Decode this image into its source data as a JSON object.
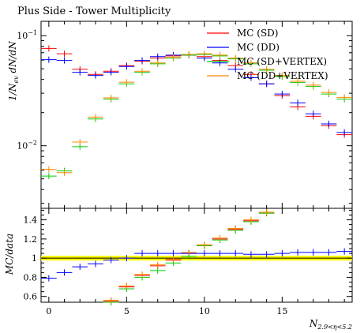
{
  "chart_data": [
    {
      "type": "line",
      "title": "Plus Side - Tower Multiplicity",
      "ylabel": "1/N_ev dN/dN",
      "xlabel": "",
      "yscale": "log",
      "xlim": [
        -0.5,
        19.5
      ],
      "ylim": [
        0.0027,
        0.135
      ],
      "grid": false,
      "legend_position": "top-right",
      "ytick_labels": [
        {
          "value": 0.01,
          "label": "10",
          "exp": "−2"
        },
        {
          "value": 0.1,
          "label": "10",
          "exp": "−1"
        }
      ],
      "x": [
        0,
        1,
        2,
        3,
        4,
        5,
        6,
        7,
        8,
        9,
        10,
        11,
        12,
        13,
        14,
        15,
        16,
        17,
        18,
        19
      ],
      "series": [
        {
          "name": "MC (SD)",
          "color": "#ff0000",
          "values": [
            0.0765,
            0.0685,
            0.0495,
            0.0445,
            0.0475,
            0.0535,
            0.0585,
            0.0625,
            0.0655,
            0.0665,
            0.0645,
            0.0595,
            0.0535,
            0.0445,
            0.0365,
            0.0285,
            0.0225,
            0.0185,
            0.0152,
            0.0126
          ]
        },
        {
          "name": "MC (DD)",
          "color": "#0000ff",
          "values": [
            0.0605,
            0.0595,
            0.0465,
            0.0435,
            0.0465,
            0.0525,
            0.0595,
            0.0645,
            0.0665,
            0.0665,
            0.0625,
            0.0565,
            0.0495,
            0.0415,
            0.0365,
            0.0295,
            0.0245,
            0.0195,
            0.0158,
            0.0132
          ]
        },
        {
          "name": "MC (SD+VERTEX)",
          "color": "#00cc00",
          "values": [
            0.0053,
            0.0059,
            0.0098,
            0.0175,
            0.0265,
            0.0365,
            0.0465,
            0.0555,
            0.0625,
            0.0665,
            0.0675,
            0.0655,
            0.0615,
            0.0555,
            0.0485,
            0.0425,
            0.0375,
            0.0345,
            0.0295,
            0.0265
          ]
        },
        {
          "name": "MC (DD+VERTEX)",
          "color": "#ff8800",
          "values": [
            0.0061,
            0.0057,
            0.0108,
            0.0182,
            0.0272,
            0.0378,
            0.0475,
            0.0565,
            0.0635,
            0.0675,
            0.0685,
            0.0665,
            0.0625,
            0.0565,
            0.0495,
            0.0435,
            0.0385,
            0.0355,
            0.0305,
            0.0275
          ]
        }
      ]
    },
    {
      "type": "line",
      "title": "",
      "ylabel": "MC/data",
      "xlabel": "N_2.9<η<5.2",
      "xlim": [
        -0.5,
        19.5
      ],
      "ylim": [
        0.54,
        1.52
      ],
      "grid": false,
      "reference_line": 1.0,
      "reference_band": [
        0.975,
        1.025
      ],
      "xticks": [
        0,
        5,
        10,
        15
      ],
      "yticks": [
        0.6,
        0.8,
        1.0,
        1.2,
        1.4
      ],
      "ytick_labels": [
        "0.6",
        "0.8",
        "1",
        "1.2",
        "1.4"
      ],
      "x": [
        0,
        1,
        2,
        3,
        4,
        5,
        6,
        7,
        8,
        9,
        10,
        11,
        12,
        13,
        14,
        15,
        16,
        17,
        18,
        19
      ],
      "series": [
        {
          "name": "MC (SD)",
          "color": "#ff0000",
          "values": [
            null,
            null,
            null,
            null,
            0.55,
            0.7,
            0.82,
            0.92,
            0.98,
            1.05,
            1.13,
            1.2,
            1.3,
            1.39,
            1.47,
            null,
            null,
            null,
            null,
            null
          ]
        },
        {
          "name": "MC (DD)",
          "color": "#0000ff",
          "values": [
            0.79,
            0.85,
            0.91,
            0.94,
            0.98,
            1.0,
            1.05,
            1.05,
            1.05,
            1.05,
            1.05,
            1.05,
            1.05,
            1.04,
            1.04,
            1.05,
            1.06,
            1.06,
            1.06,
            1.07
          ]
        },
        {
          "name": "MC (SD+VERTEX)",
          "color": "#00cc00",
          "values": [
            null,
            null,
            null,
            null,
            0.54,
            0.68,
            0.8,
            0.87,
            0.95,
            1.02,
            1.13,
            1.19,
            1.29,
            1.38,
            1.47,
            null,
            null,
            null,
            null,
            null
          ]
        },
        {
          "name": "MC (DD+VERTEX)",
          "color": "#ff8800",
          "values": [
            null,
            null,
            null,
            null,
            0.56,
            0.71,
            0.83,
            0.93,
            0.99,
            1.06,
            1.14,
            1.21,
            1.31,
            1.4,
            1.48,
            null,
            null,
            null,
            null,
            null
          ]
        }
      ]
    }
  ]
}
